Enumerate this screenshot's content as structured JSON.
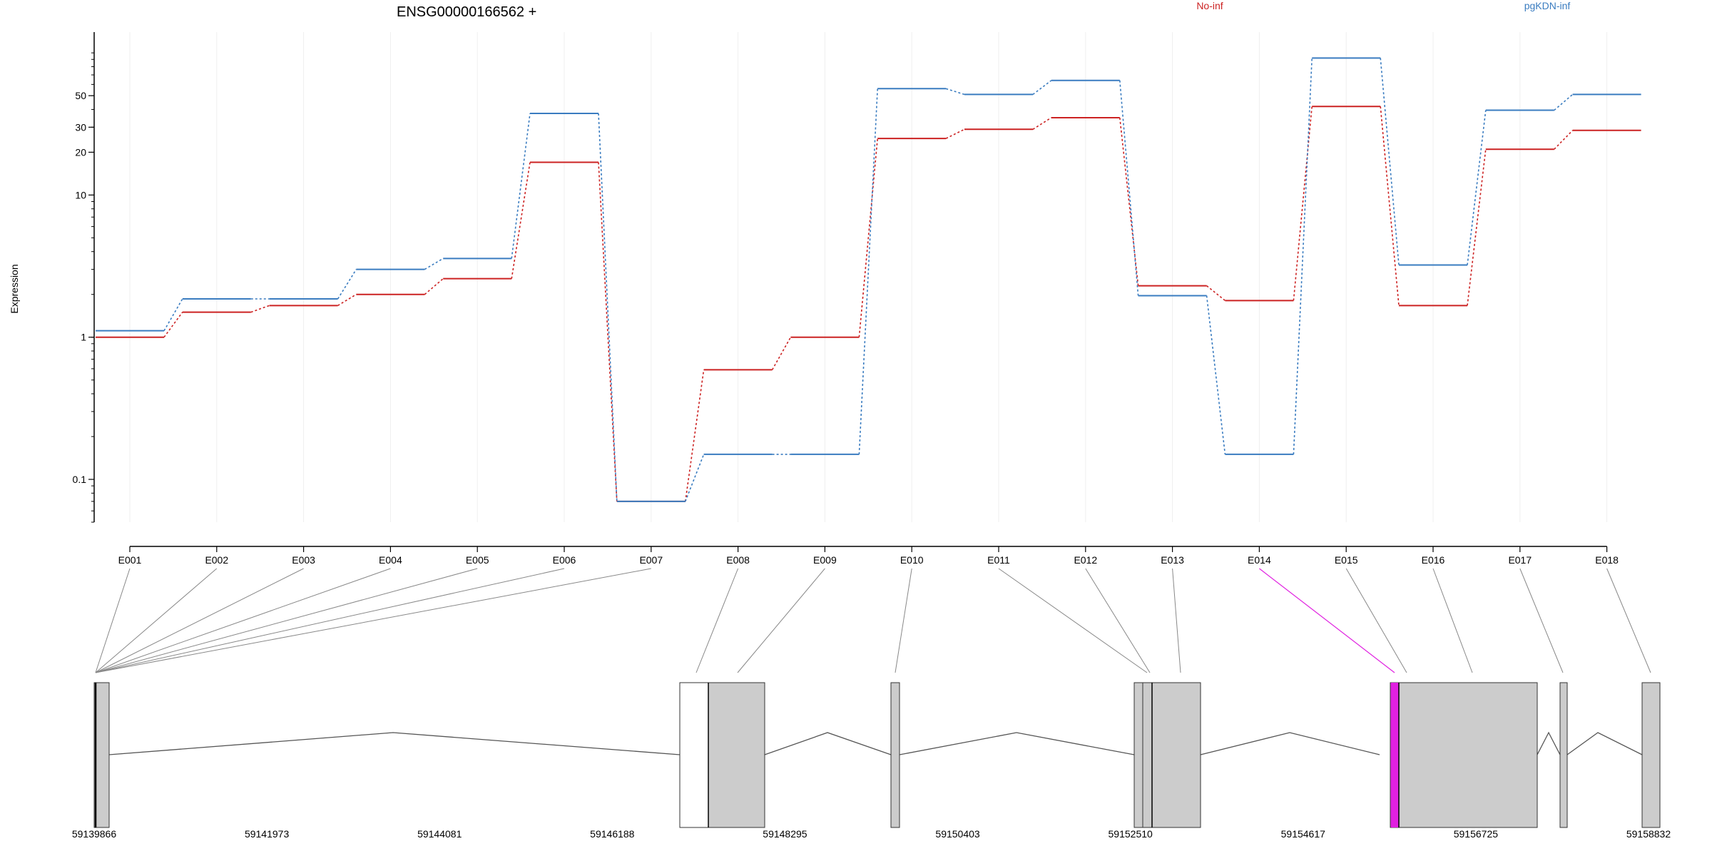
{
  "chart_data": {
    "type": "line",
    "title": "ENSG00000166562 +",
    "xlabel": "",
    "ylabel": "Expression",
    "y_scale": "log",
    "y_ticks": [
      0.1,
      1,
      10,
      20,
      30,
      50
    ],
    "y_tick_labels": [
      "0.1",
      "1",
      "10",
      "20",
      "30",
      "50"
    ],
    "categories": [
      "E001",
      "E002",
      "E003",
      "E004",
      "E005",
      "E006",
      "E007",
      "E008",
      "E009",
      "E010",
      "E011",
      "E012",
      "E013",
      "E014",
      "E015",
      "E016",
      "E017",
      "E018"
    ],
    "legend_placement": "top-right",
    "series": [
      {
        "name": "No-inf",
        "color": "#cc2222",
        "values": [
          1.0,
          1.5,
          1.67,
          2.0,
          2.58,
          17.0,
          0.07,
          0.59,
          1.0,
          25.0,
          29.0,
          35.0,
          2.3,
          1.81,
          42.0,
          1.67,
          21.0,
          28.5
        ]
      },
      {
        "name": "pgKDN-inf",
        "color": "#3a7cc0",
        "values": [
          1.11,
          1.86,
          1.86,
          3.0,
          3.58,
          37.5,
          0.07,
          0.15,
          0.15,
          56.0,
          51.0,
          64.0,
          1.96,
          0.15,
          92.0,
          3.22,
          39.5,
          51.0
        ]
      }
    ],
    "gene_model": {
      "coordinate_labels": [
        "59139866",
        "59141973",
        "59144081",
        "59146188",
        "59148295",
        "59150403",
        "59152510",
        "59154617",
        "59156725",
        "59158832"
      ],
      "highlight_color": "#e020e0",
      "box_color": "#cccccc"
    }
  }
}
